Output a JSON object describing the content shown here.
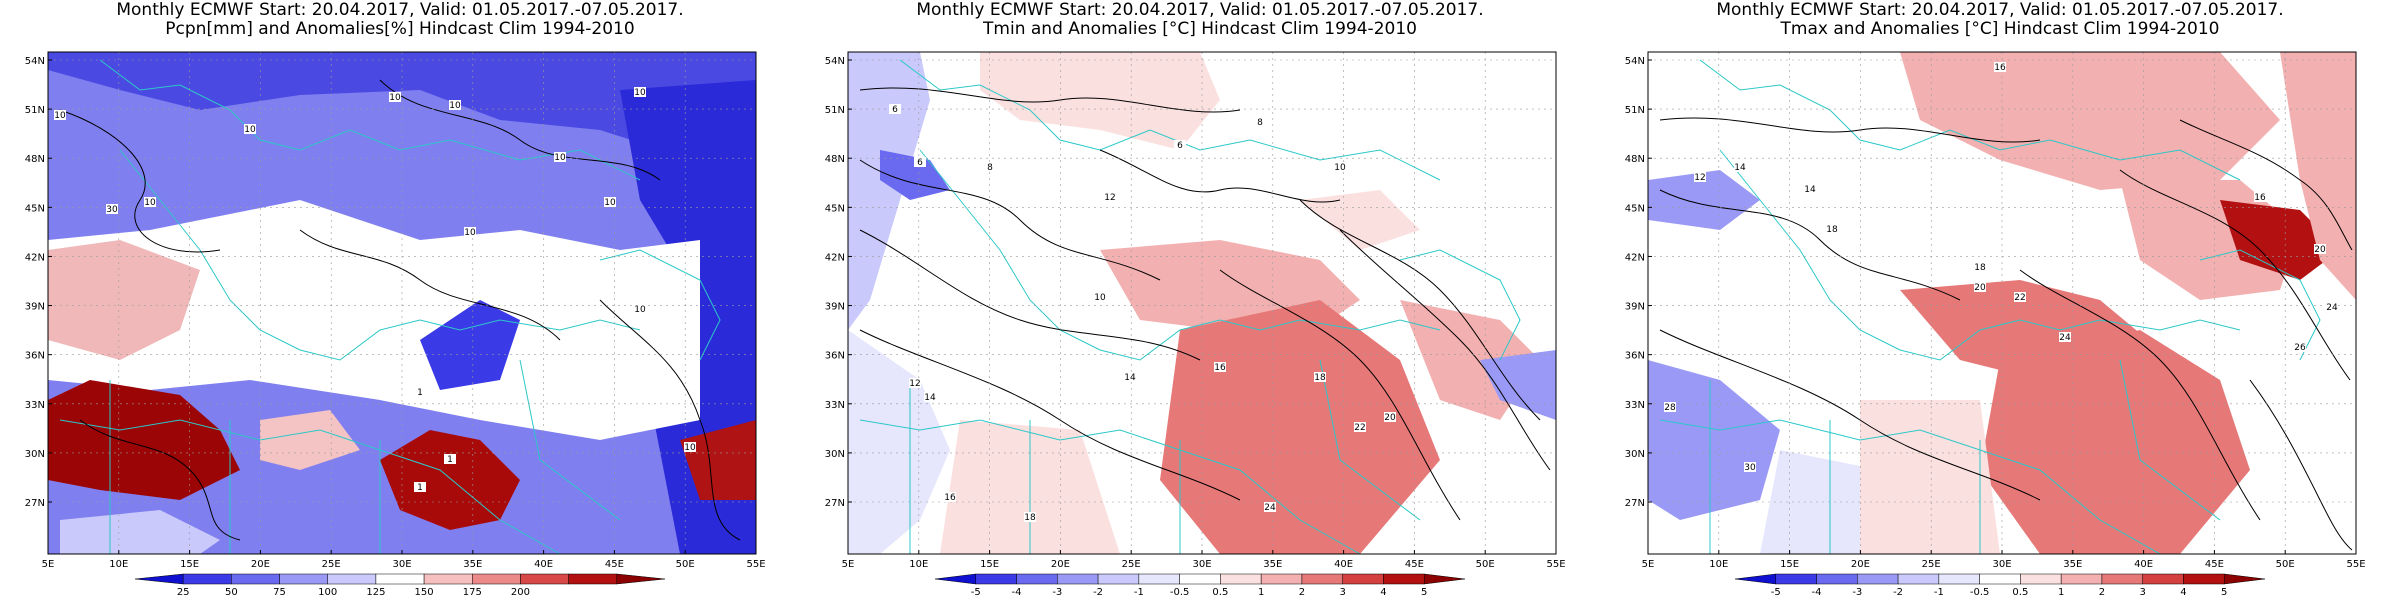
{
  "panels": [
    {
      "title_line1": "Monthly ECMWF Start: 20.04.2017, Valid: 01.05.2017.-07.05.2017.",
      "title_line2": "Pcpn[mm] and Anomalies[%] Hindcast Clim 1994-2010",
      "colorbar_labels": [
        "25",
        "50",
        "75",
        "100",
        "125",
        "150",
        "175",
        "200"
      ],
      "colorbar_colors": [
        "#1010d0",
        "#3a3ae6",
        "#6a6af0",
        "#9a9af6",
        "#c9c9fb",
        "#ffffff",
        "#f7c0c0",
        "#ec8a8a",
        "#d84848",
        "#b31111",
        "#8b0000"
      ],
      "contour_labels": [
        "10",
        "10",
        "30",
        "10",
        "10",
        "10",
        "10",
        "10",
        "10",
        "1",
        "10",
        "10",
        "1",
        "1",
        "10"
      ]
    },
    {
      "title_line1": "Monthly ECMWF Start: 20.04.2017, Valid: 01.05.2017.-07.05.2017.",
      "title_line2": "Tmin and Anomalies [°C] Hindcast Clim 1994-2010",
      "colorbar_labels": [
        "-5",
        "-4",
        "-3",
        "-2",
        "-1",
        "-0.5",
        "0.5",
        "1",
        "2",
        "3",
        "4",
        "5"
      ],
      "colorbar_colors": [
        "#1010d0",
        "#3a3ae6",
        "#6a6af0",
        "#9a9af6",
        "#c9c9fb",
        "#e6e6fd",
        "#ffffff",
        "#fbe0e0",
        "#f3b0b0",
        "#e67878",
        "#d44040",
        "#b31111",
        "#8b0000"
      ],
      "contour_labels": [
        "6",
        "6",
        "8",
        "10",
        "12",
        "14",
        "16",
        "18",
        "20",
        "22",
        "24",
        "12",
        "14",
        "16",
        "18",
        "6",
        "8",
        "10"
      ]
    },
    {
      "title_line1": "Monthly ECMWF Start: 20.04.2017, Valid: 01.05.2017.-07.05.2017.",
      "title_line2": "Tmax and Anomalies [°C] Hindcast Clim 1994-2010",
      "colorbar_labels": [
        "-5",
        "-4",
        "-3",
        "-2",
        "-1",
        "-0.5",
        "0.5",
        "1",
        "2",
        "3",
        "4",
        "5"
      ],
      "colorbar_colors": [
        "#1010d0",
        "#3a3ae6",
        "#6a6af0",
        "#9a9af6",
        "#c9c9fb",
        "#e6e6fd",
        "#ffffff",
        "#fbe0e0",
        "#f3b0b0",
        "#e67878",
        "#d44040",
        "#b31111",
        "#8b0000"
      ],
      "contour_labels": [
        "16",
        "14",
        "12",
        "14",
        "18",
        "20",
        "22",
        "24",
        "28",
        "30",
        "26",
        "18",
        "16",
        "20",
        "24"
      ]
    }
  ],
  "lat_labels": [
    "54N",
    "51N",
    "48N",
    "45N",
    "42N",
    "39N",
    "36N",
    "33N",
    "30N",
    "27N"
  ],
  "lon_labels": [
    "5E",
    "10E",
    "15E",
    "20E",
    "25E",
    "30E",
    "35E",
    "40E",
    "45E",
    "50E",
    "55E"
  ],
  "colors": {
    "country_border": "#2cc8c8",
    "contour": "#000000",
    "grid": "#9a9a9a"
  }
}
